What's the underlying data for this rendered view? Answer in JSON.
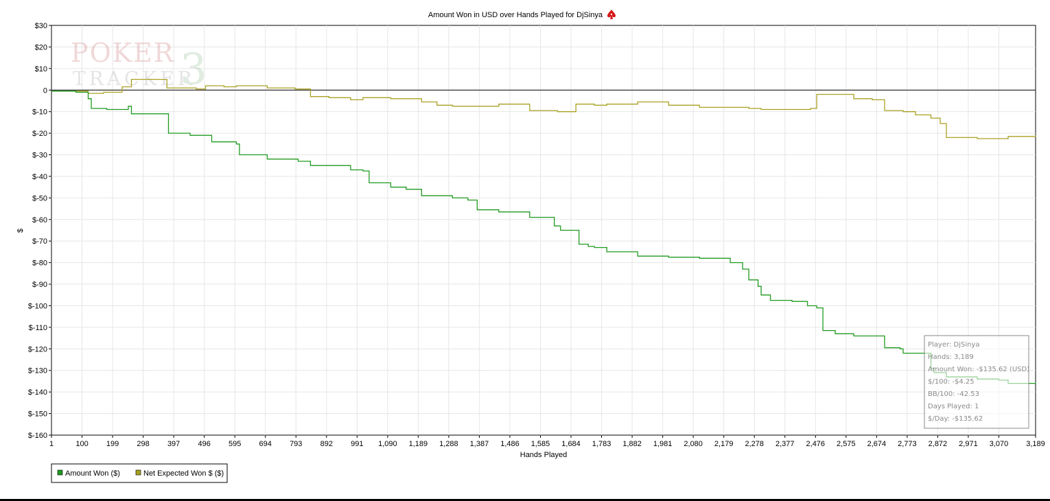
{
  "chart_data": {
    "type": "line",
    "title": "Amount Won in USD over Hands Played for DjSinya",
    "title_icon": "spade-icon",
    "xlabel": "Hands Played",
    "ylabel": "$",
    "xlim": [
      1,
      3189
    ],
    "ylim": [
      -160,
      30
    ],
    "grid": true,
    "legend_position": "bottom-left",
    "x_ticks": [
      "1",
      "100",
      "199",
      "298",
      "397",
      "496",
      "595",
      "694",
      "793",
      "892",
      "991",
      "1,090",
      "1,189",
      "1,288",
      "1,387",
      "1,486",
      "1,585",
      "1,684",
      "1,783",
      "1,882",
      "1,981",
      "2,080",
      "2,179",
      "2,278",
      "2,377",
      "2,476",
      "2,575",
      "2,674",
      "2,773",
      "2,872",
      "2,971",
      "3,070",
      "3,189"
    ],
    "y_ticks": [
      "$30",
      "$20",
      "$10",
      "0",
      "$-10",
      "$-20",
      "$-30",
      "$-40",
      "$-50",
      "$-60",
      "$-70",
      "$-80",
      "$-90",
      "$-100",
      "$-110",
      "$-120",
      "$-130",
      "$-140",
      "$-150",
      "$-160"
    ],
    "series": [
      {
        "name": "Amount Won ($)",
        "color": "#1f9a1f",
        "x": [
          1,
          80,
          120,
          130,
          180,
          250,
          260,
          370,
          380,
          450,
          520,
          600,
          610,
          700,
          800,
          840,
          970,
          1010,
          1030,
          1100,
          1150,
          1200,
          1300,
          1350,
          1380,
          1450,
          1550,
          1630,
          1650,
          1710,
          1740,
          1760,
          1800,
          1900,
          2000,
          2100,
          2200,
          2240,
          2260,
          2290,
          2300,
          2330,
          2400,
          2450,
          2480,
          2500,
          2540,
          2600,
          2700,
          2750,
          2760,
          2850,
          2860,
          2900,
          3000,
          3070,
          3100,
          3189
        ],
        "y": [
          -0.5,
          -1,
          -4,
          -8.5,
          -9,
          -7.5,
          -11,
          -11,
          -20,
          -21,
          -24,
          -25,
          -30,
          -32,
          -33,
          -35,
          -37,
          -37.5,
          -43,
          -45,
          -46,
          -49,
          -50,
          -51,
          -55.5,
          -56.5,
          -59,
          -63,
          -65,
          -71.5,
          -72.5,
          -73,
          -75,
          -77,
          -77.5,
          -78,
          -80,
          -83,
          -88,
          -91,
          -95,
          -97.5,
          -98,
          -100,
          -101,
          -111.5,
          -113,
          -114,
          -119.5,
          -120,
          -122,
          -129,
          -131,
          -133,
          -134,
          -134.5,
          -136,
          -135.5
        ]
      },
      {
        "name": "Net Expected Won $ ($)",
        "color": "#a9a020",
        "x": [
          1,
          80,
          120,
          170,
          230,
          260,
          365,
          375,
          470,
          500,
          560,
          600,
          700,
          790,
          840,
          900,
          970,
          1010,
          1100,
          1200,
          1250,
          1300,
          1350,
          1450,
          1550,
          1640,
          1700,
          1760,
          1800,
          1900,
          2000,
          2100,
          2200,
          2260,
          2300,
          2400,
          2460,
          2480,
          2600,
          2660,
          2700,
          2760,
          2800,
          2850,
          2880,
          2900,
          3000,
          3100,
          3189
        ],
        "y": [
          -0.5,
          -0.5,
          -1.5,
          -1,
          1.5,
          5,
          5,
          1,
          0.5,
          2,
          1.5,
          2,
          1,
          0.5,
          -3,
          -3.5,
          -4.5,
          -3.5,
          -4,
          -5.5,
          -7,
          -7.5,
          -7.5,
          -6.5,
          -9.5,
          -10,
          -6.5,
          -7,
          -6.5,
          -5.5,
          -7,
          -8,
          -8,
          -8.5,
          -9,
          -9,
          -8.5,
          -2,
          -4,
          -4.5,
          -9.5,
          -10,
          -11.5,
          -13,
          -15.5,
          -22,
          -22.5,
          -21.5,
          -21
        ]
      }
    ],
    "stats_box": {
      "player": "Player: DjSinya",
      "hands": "Hands: 3,189",
      "amount_won": "Amount Won: -$135.62 (USD)",
      "per_100": "$/100: -$4.25",
      "bb_per_100": "BB/100: -42.53",
      "days_played": "Days Played: 1",
      "per_day": "$/Day: -$135.62"
    },
    "watermark": "POKER TRACKER 3"
  }
}
